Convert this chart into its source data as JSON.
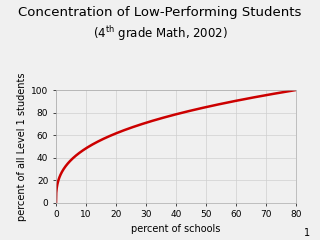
{
  "title_line1": "Concentration of Low-Performing Students",
  "title_line2_tex": "(4$^{\\mathrm{th}}$ grade Math, 2002)",
  "xlabel": "percent of schools",
  "ylabel": "percent of all Level 1 students",
  "xlim": [
    0,
    80
  ],
  "ylim": [
    0,
    100
  ],
  "xticks": [
    0,
    10,
    20,
    30,
    40,
    50,
    60,
    70,
    80
  ],
  "yticks": [
    0,
    20,
    40,
    60,
    80,
    100
  ],
  "curve_color": "#cc0000",
  "grid_color": "#d0d0d0",
  "plot_bg_color": "#f0f0f0",
  "fig_bg_color": "#f0f0f0",
  "curve_power": 0.35,
  "page_number": "1",
  "title_fontsize": 9.5,
  "subtitle_fontsize": 8.5,
  "label_fontsize": 7,
  "tick_fontsize": 6.5
}
